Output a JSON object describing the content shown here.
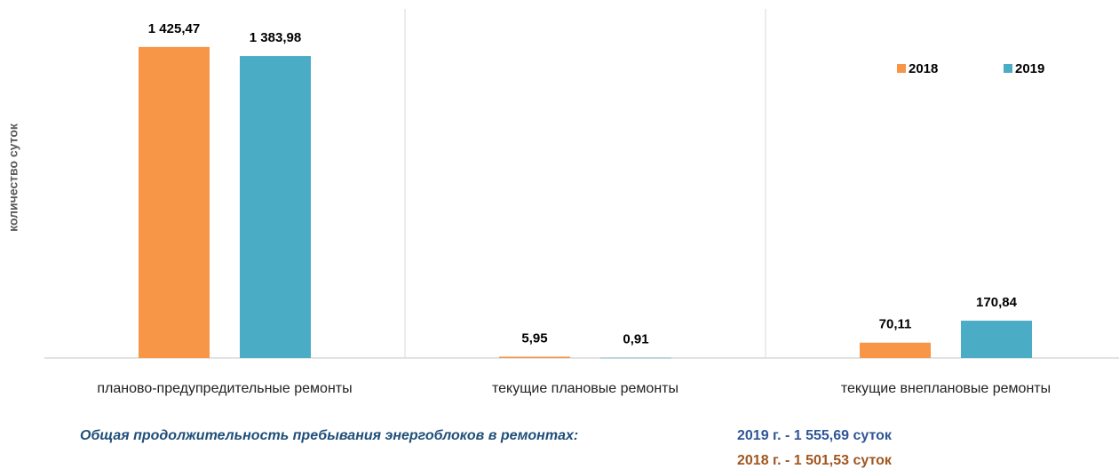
{
  "chart_data": {
    "type": "bar",
    "y_label": "количество суток",
    "categories": [
      "планово-предупредительные ремонты",
      "текущие плановые ремонты",
      "текущие внеплановые ремонты"
    ],
    "series": [
      {
        "name": "2018",
        "color": "#F79646",
        "values": [
          1425.47,
          5.95,
          70.11
        ],
        "value_labels": [
          "1 425,47",
          "5,95",
          "70,11"
        ]
      },
      {
        "name": "2019",
        "color": "#4BACC6",
        "values": [
          1383.98,
          0.91,
          170.84
        ],
        "value_labels": [
          "1 383,98",
          "0,91",
          "170,84"
        ]
      }
    ],
    "ylim": [
      0,
      1600
    ],
    "legend": "upper right",
    "annotations": [
      {
        "text": "Общая продолжительность пребывания энергоблоков в ремонтах:",
        "color": "#1F4E79"
      },
      {
        "text": "2019 г. - 1 555,69 суток",
        "color": "#2F5597"
      },
      {
        "text": "2018 г. - 1 501,53 суток",
        "color": "#A0561E"
      }
    ]
  }
}
